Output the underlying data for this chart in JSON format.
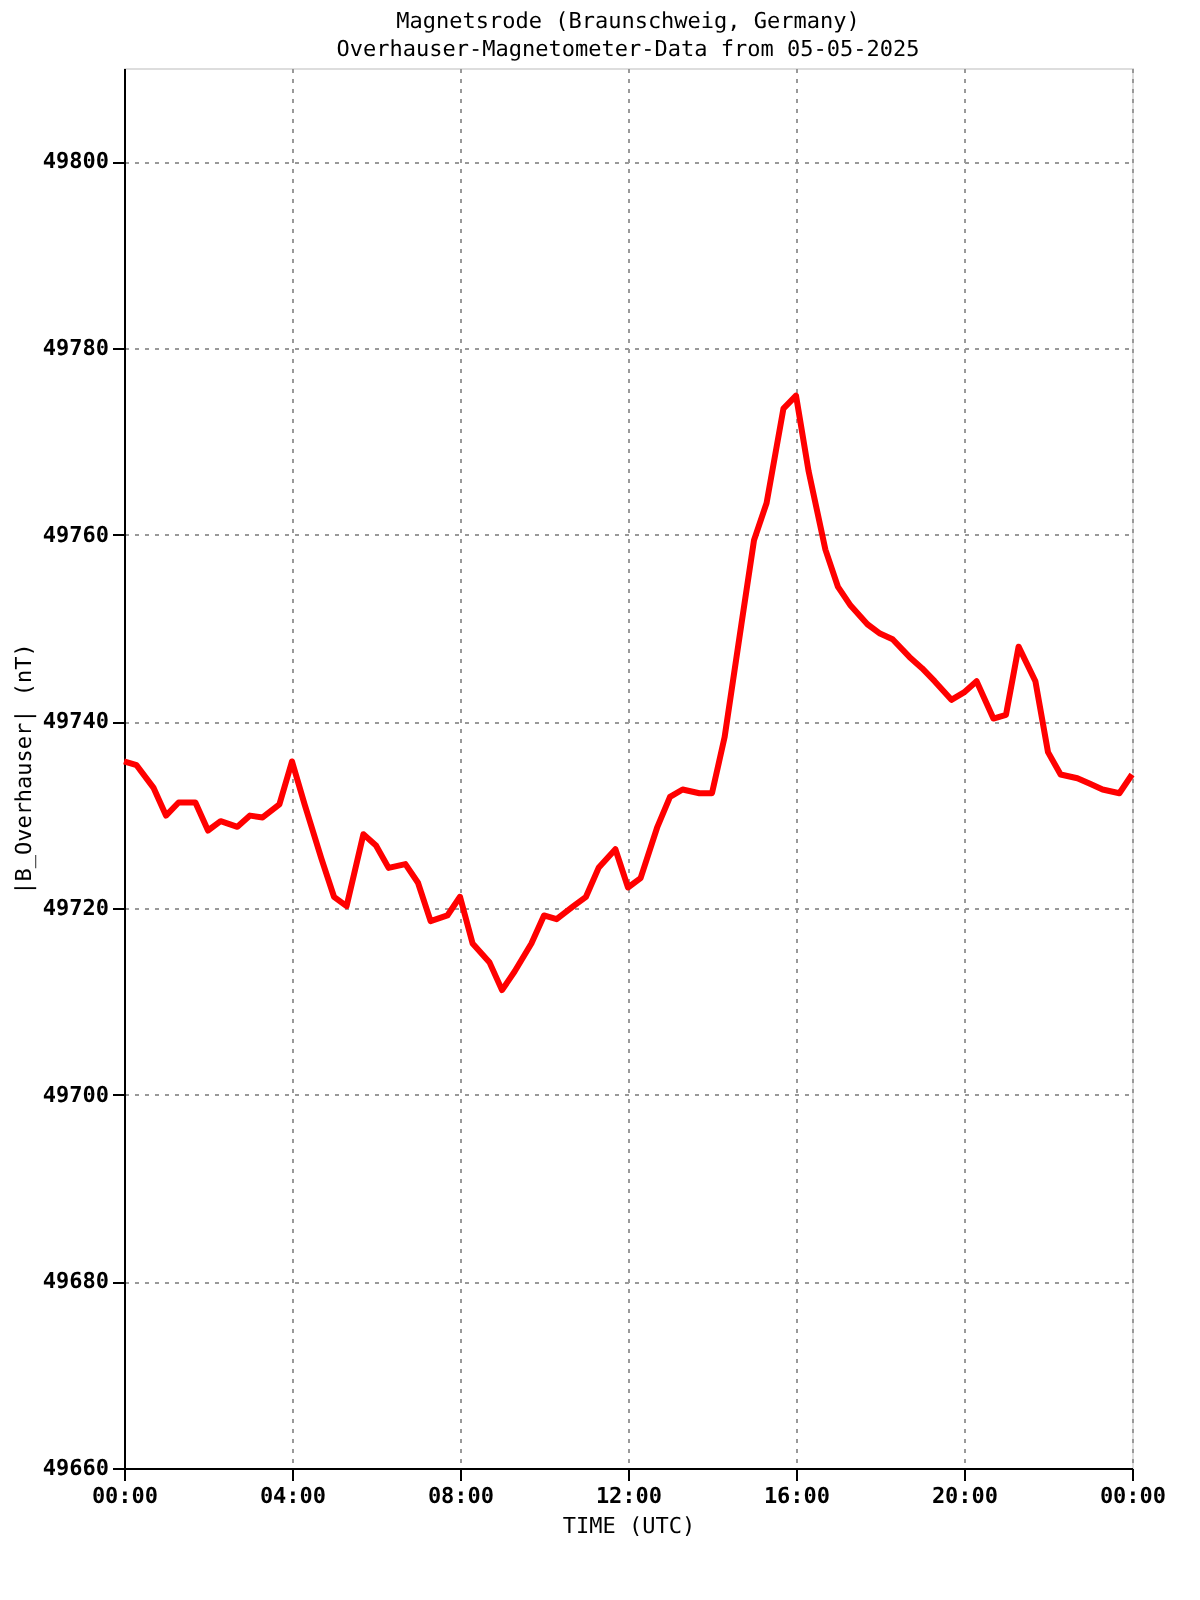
{
  "chart_data": {
    "type": "line",
    "title": "Magnetsrode (Braunschweig, Germany)",
    "subtitle": "Overhauser-Magnetometer-Data from 05-05-2025",
    "xlabel": "TIME (UTC)",
    "ylabel": "|B_Overhauser| (nT)",
    "x": [
      0,
      0.3,
      0.7,
      1.0,
      1.3,
      1.7,
      2.0,
      2.3,
      2.7,
      3.0,
      3.3,
      3.7,
      4.0,
      4.3,
      4.7,
      5.0,
      5.3,
      5.7,
      6.0,
      6.3,
      6.7,
      7.0,
      7.3,
      7.7,
      8.0,
      8.3,
      8.7,
      9.0,
      9.3,
      9.7,
      10.0,
      10.3,
      10.7,
      11.0,
      11.3,
      11.7,
      12.0,
      12.3,
      12.7,
      13.0,
      13.3,
      13.7,
      14.0,
      14.3,
      14.7,
      15.0,
      15.3,
      15.7,
      16.0,
      16.3,
      16.7,
      17.0,
      17.3,
      17.7,
      18.0,
      18.3,
      18.7,
      19.0,
      19.3,
      19.7,
      20.0,
      20.3,
      20.7,
      21.0,
      21.3,
      21.7,
      22.0,
      22.3,
      22.7,
      23.0,
      23.3,
      23.7,
      24.0
    ],
    "series": [
      {
        "color": "#ff0000",
        "values": [
          49735.7,
          49735.3,
          49732.9,
          49729.9,
          49731.3,
          49731.3,
          49728.3,
          49729.3,
          49728.7,
          49729.9,
          49729.7,
          49731.1,
          49735.7,
          49731.1,
          49725.3,
          49721.2,
          49720.2,
          49727.9,
          49726.7,
          49724.3,
          49724.7,
          49722.7,
          49718.6,
          49719.2,
          49721.2,
          49716.2,
          49714.2,
          49711.2,
          49713.2,
          49716.2,
          49719.2,
          49718.8,
          49720.2,
          49721.2,
          49724.3,
          49726.3,
          49722.2,
          49723.2,
          49728.7,
          49731.9,
          49732.7,
          49732.3,
          49732.3,
          49738.3,
          49750.4,
          49759.4,
          49763.4,
          49773.5,
          49774.9,
          49766.8,
          49758.4,
          49754.4,
          49752.4,
          49750.4,
          49749.4,
          49748.8,
          49746.9,
          49745.7,
          49744.3,
          49742.3,
          49743.1,
          49744.3,
          49740.3,
          49740.7,
          49748.0,
          49744.3,
          49736.7,
          49734.3,
          49733.9,
          49733.3,
          49732.7,
          49732.3,
          49734.3
        ]
      }
    ],
    "xlim": [
      0,
      24
    ],
    "xticks": [
      {
        "value": 0,
        "label": "00:00"
      },
      {
        "value": 4,
        "label": "04:00"
      },
      {
        "value": 8,
        "label": "08:00"
      },
      {
        "value": 12,
        "label": "12:00"
      },
      {
        "value": 16,
        "label": "16:00"
      },
      {
        "value": 20,
        "label": "20:00"
      },
      {
        "value": 24,
        "label": "00:00"
      }
    ],
    "ylim": [
      49660,
      49810
    ],
    "yticks": [
      49660,
      49680,
      49700,
      49720,
      49740,
      49760,
      49780,
      49800
    ],
    "grid": true,
    "marker": "none",
    "line_style": "solid"
  }
}
